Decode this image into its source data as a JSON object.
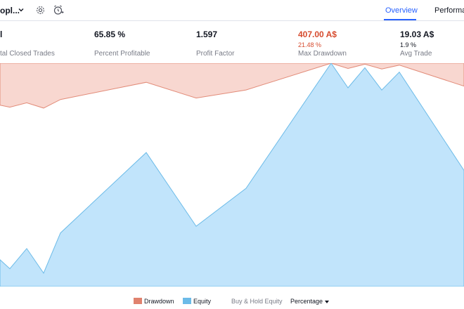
{
  "header": {
    "strategy_name": "opl...",
    "tabs": [
      {
        "label": "Overview",
        "active": true
      },
      {
        "label": "Performa",
        "active": false
      }
    ],
    "icons": [
      "chevron-down-icon",
      "gear-icon",
      "alarm-clock-icon"
    ]
  },
  "stats": [
    {
      "value": "l",
      "sub": "",
      "label": "tal Closed Trades"
    },
    {
      "value": "65.85 %",
      "sub": "",
      "label": "Percent Profitable"
    },
    {
      "value": "1.597",
      "sub": "",
      "label": "Profit Factor"
    },
    {
      "value": "407.00 A$",
      "sub": "21.48 %",
      "label": "Max Drawdown",
      "color": "#d64b2e"
    },
    {
      "value": "19.03 A$",
      "sub": "1.9 %",
      "label": "Avg Trade"
    }
  ],
  "legend": {
    "drawdown": "Drawdown",
    "equity": "Equity",
    "buy_hold": "Buy & Hold Equity",
    "percentage": "Percentage"
  },
  "colors": {
    "accent": "#2962ff",
    "drawdown_fill": "#f8d7d0",
    "drawdown_line": "#e28b78",
    "equity_fill": "#c1e4fb",
    "equity_line": "#6cbbe8",
    "negative": "#d64b2e"
  },
  "chart_data": {
    "type": "area",
    "series": [
      {
        "name": "Equity",
        "values": [
          0.12,
          0.08,
          0.17,
          0.06,
          0.24,
          0.6,
          0.27,
          0.44,
          1.0,
          0.89,
          0.98,
          0.88,
          0.96,
          0.52
        ]
      },
      {
        "name": "Drawdown",
        "values": [
          0.88,
          0.92,
          0.83,
          0.94,
          0.76,
          0.4,
          0.73,
          0.56,
          0.0,
          0.11,
          0.02,
          0.12,
          0.04,
          0.48
        ]
      }
    ],
    "grid": false,
    "legend_position": "bottom-center"
  }
}
